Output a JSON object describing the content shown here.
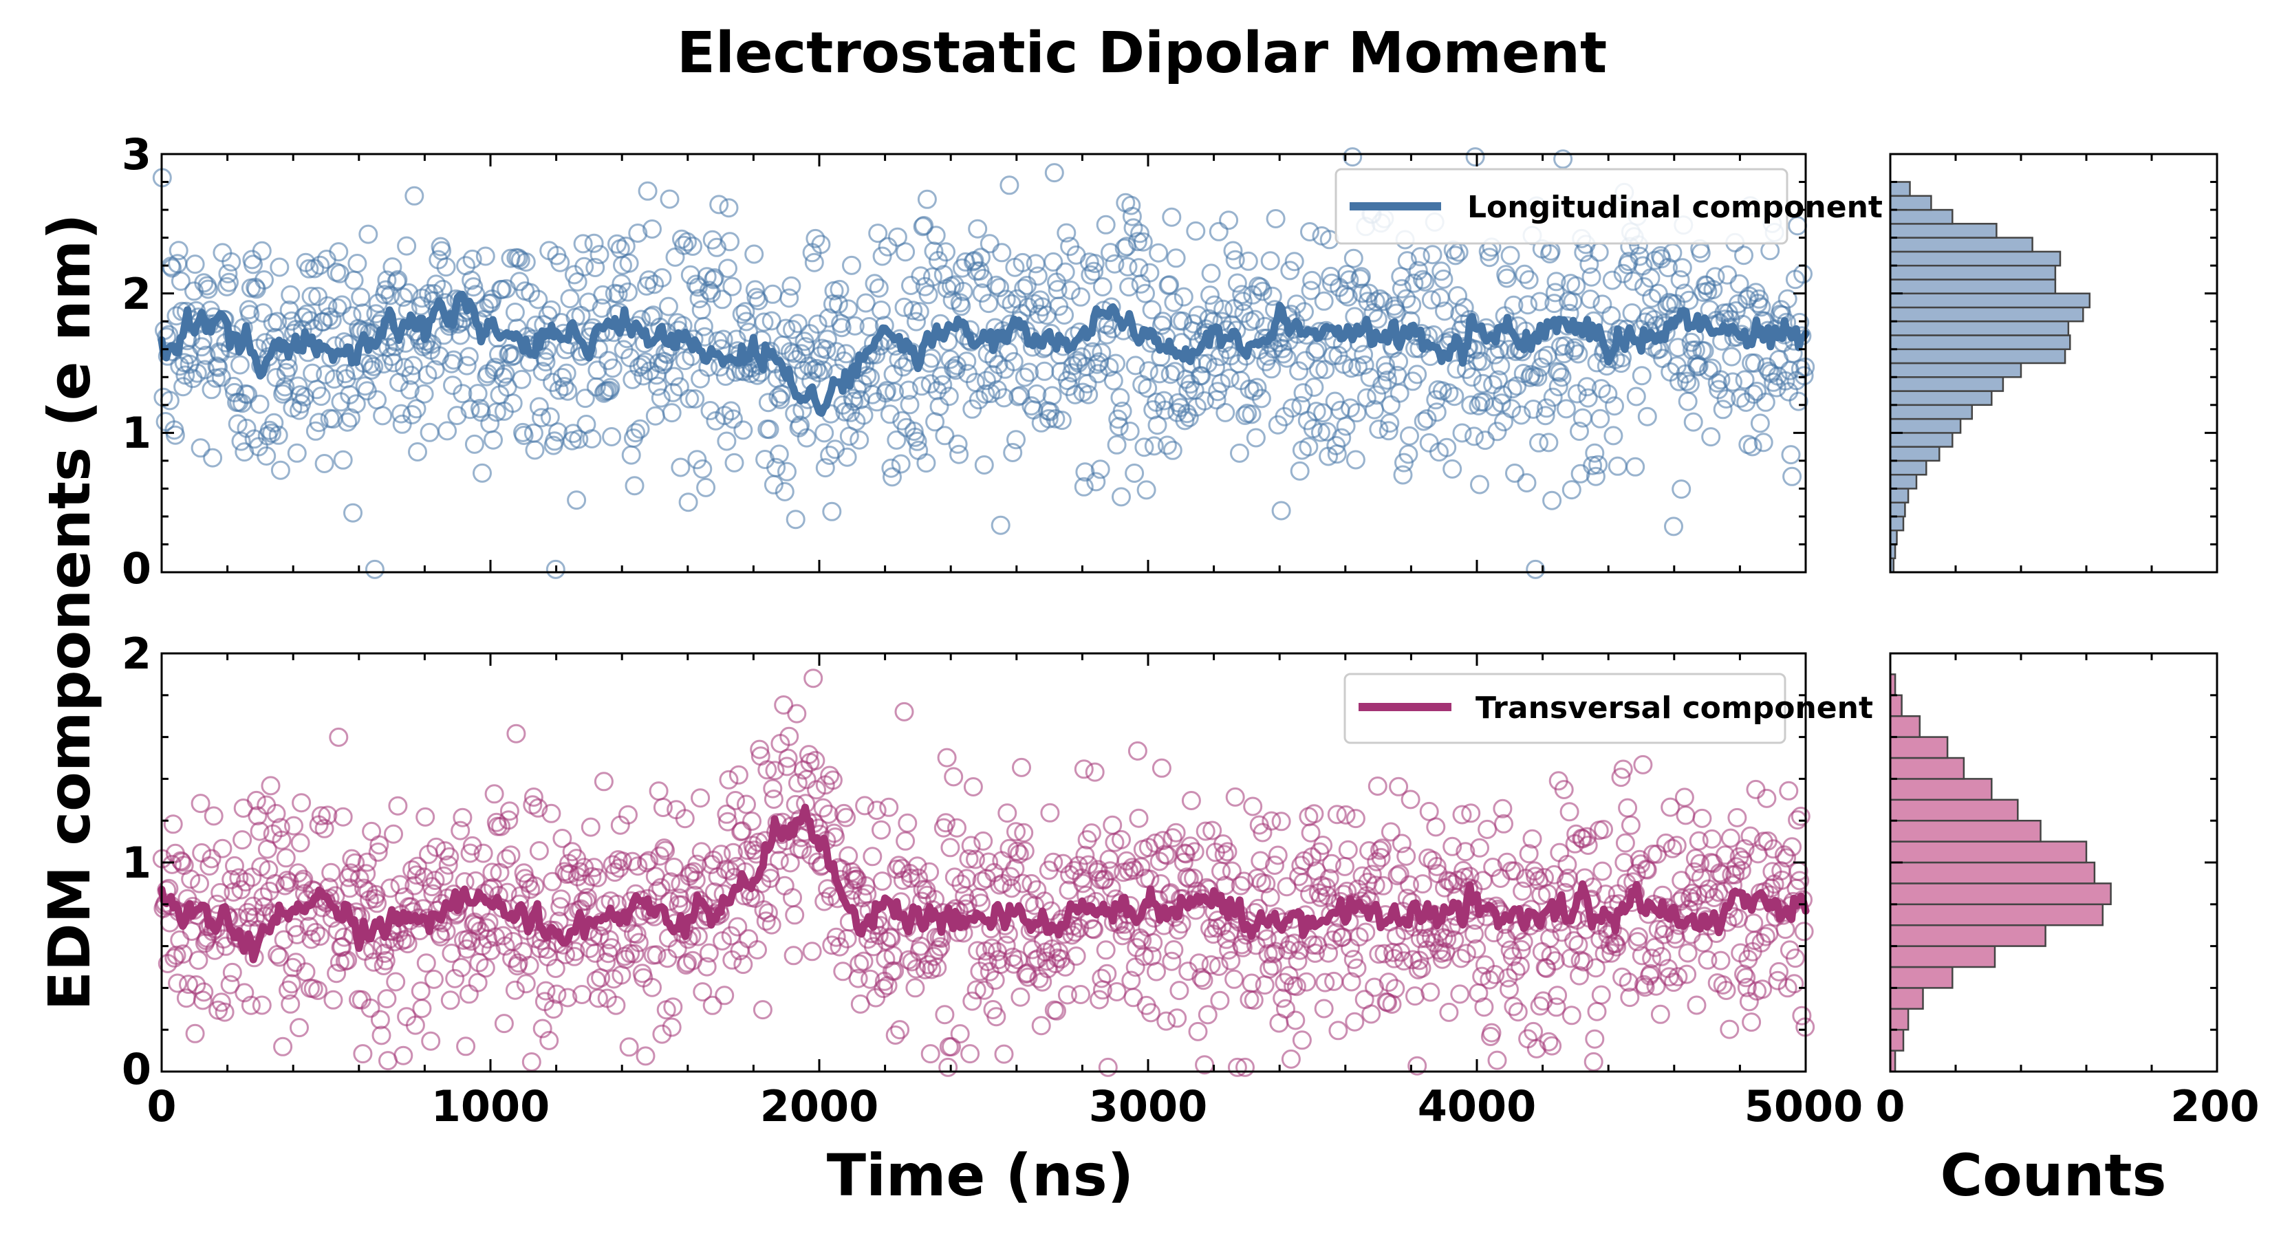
{
  "chart_data": [
    {
      "type": "scatter",
      "panel": "longitudinal",
      "title": "Electrostatic Dipolar Moment",
      "xlabel": "Time (ns)",
      "ylabel": "EDM components (e nm)",
      "xlim": [
        0,
        5000
      ],
      "ylim": [
        0,
        3
      ],
      "xticks": [
        "0",
        "1000",
        "2000",
        "3000",
        "4000",
        "5000"
      ],
      "yticks": [
        "0",
        "1",
        "2",
        "3"
      ],
      "legend": {
        "label": "Longitudinal component",
        "position": "top-right"
      },
      "color": "#4574a5",
      "points": {
        "count": 1500,
        "mean": 1.6,
        "sd": 0.45
      },
      "series": [
        {
          "name": "Longitudinal component",
          "style": "line",
          "x": [
            0,
            100,
            200,
            300,
            400,
            500,
            600,
            700,
            800,
            900,
            1000,
            1100,
            1200,
            1300,
            1400,
            1500,
            1600,
            1700,
            1800,
            1900,
            2000,
            2100,
            2200,
            2300,
            2400,
            2500,
            2600,
            2700,
            2800,
            2900,
            3000,
            3100,
            3200,
            3300,
            3400,
            3500,
            3600,
            3700,
            3800,
            3900,
            4000,
            4100,
            4200,
            4300,
            4400,
            4500,
            4600,
            4700,
            4800,
            4900,
            5000
          ],
          "y": [
            1.55,
            1.75,
            1.7,
            1.45,
            1.65,
            1.6,
            1.55,
            1.85,
            1.7,
            1.95,
            1.75,
            1.6,
            1.7,
            1.65,
            1.8,
            1.7,
            1.65,
            1.5,
            1.55,
            1.45,
            1.2,
            1.45,
            1.7,
            1.6,
            1.75,
            1.65,
            1.7,
            1.6,
            1.75,
            1.8,
            1.7,
            1.55,
            1.75,
            1.6,
            1.8,
            1.7,
            1.75,
            1.65,
            1.7,
            1.6,
            1.75,
            1.65,
            1.7,
            1.75,
            1.6,
            1.7,
            1.8,
            1.75,
            1.7,
            1.75,
            1.65
          ]
        }
      ]
    },
    {
      "type": "scatter",
      "panel": "transversal",
      "xlabel": "Time (ns)",
      "ylabel": "EDM components (e nm)",
      "xlim": [
        0,
        5000
      ],
      "ylim": [
        0,
        2
      ],
      "xticks": [
        "0",
        "1000",
        "2000",
        "3000",
        "4000",
        "5000"
      ],
      "yticks": [
        "0",
        "1",
        "2"
      ],
      "legend": {
        "label": "Transversal component",
        "position": "top-right"
      },
      "color": "#a33374",
      "points": {
        "count": 1500,
        "sd": 0.28
      },
      "series": [
        {
          "name": "Transversal component",
          "style": "line",
          "x": [
            0,
            100,
            200,
            300,
            400,
            500,
            600,
            700,
            800,
            900,
            1000,
            1100,
            1200,
            1300,
            1400,
            1500,
            1600,
            1700,
            1800,
            1900,
            2000,
            2100,
            2200,
            2300,
            2400,
            2500,
            2600,
            2700,
            2800,
            2900,
            3000,
            3100,
            3200,
            3300,
            3400,
            3500,
            3600,
            3700,
            3800,
            3900,
            4000,
            4100,
            4200,
            4300,
            4400,
            4500,
            4600,
            4700,
            4800,
            4900,
            5000
          ],
          "y": [
            0.85,
            0.75,
            0.7,
            0.68,
            0.78,
            0.8,
            0.65,
            0.72,
            0.7,
            0.8,
            0.78,
            0.74,
            0.7,
            0.72,
            0.75,
            0.78,
            0.72,
            0.8,
            0.95,
            1.2,
            1.15,
            0.75,
            0.78,
            0.7,
            0.75,
            0.78,
            0.72,
            0.7,
            0.75,
            0.82,
            0.78,
            0.8,
            0.85,
            0.72,
            0.7,
            0.75,
            0.78,
            0.74,
            0.72,
            0.76,
            0.78,
            0.75,
            0.72,
            0.78,
            0.75,
            0.8,
            0.76,
            0.72,
            0.78,
            0.8,
            0.78
          ]
        }
      ]
    },
    {
      "type": "bar",
      "panel": "longitudinal-histogram",
      "orientation": "horizontal",
      "xlabel": "Counts",
      "xlim": [
        0,
        200
      ],
      "ylim": [
        0,
        3
      ],
      "xticks": [
        "0",
        "200"
      ],
      "color": "#9cb3cf",
      "bin_centers": [
        0.05,
        0.15,
        0.25,
        0.35,
        0.45,
        0.55,
        0.65,
        0.75,
        0.85,
        0.95,
        1.05,
        1.15,
        1.25,
        1.35,
        1.45,
        1.55,
        1.65,
        1.75,
        1.85,
        1.95,
        2.05,
        2.15,
        2.25,
        2.35,
        2.45,
        2.55,
        2.65,
        2.75
      ],
      "values": [
        2,
        3,
        4,
        8,
        9,
        11,
        16,
        22,
        30,
        38,
        43,
        50,
        62,
        69,
        80,
        107,
        110,
        109,
        118,
        122,
        101,
        101,
        104,
        87,
        65,
        38,
        25,
        12
      ]
    },
    {
      "type": "bar",
      "panel": "transversal-histogram",
      "orientation": "horizontal",
      "xlabel": "Counts",
      "xlim": [
        0,
        200
      ],
      "ylim": [
        0,
        2
      ],
      "xticks": [
        "0",
        "200"
      ],
      "color": "#d78ab0",
      "bin_centers": [
        0.05,
        0.15,
        0.25,
        0.35,
        0.45,
        0.55,
        0.65,
        0.75,
        0.85,
        0.95,
        1.05,
        1.15,
        1.25,
        1.35,
        1.45,
        1.55,
        1.65,
        1.75,
        1.85
      ],
      "values": [
        3,
        8,
        11,
        20,
        38,
        64,
        95,
        130,
        135,
        125,
        120,
        92,
        78,
        62,
        45,
        35,
        18,
        7,
        3
      ]
    }
  ]
}
